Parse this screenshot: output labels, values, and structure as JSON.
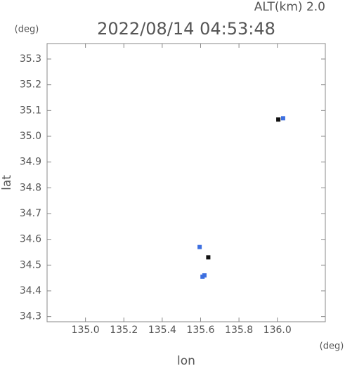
{
  "chart_data": {
    "type": "scatter",
    "title": "2022/08/14 04:53:48",
    "subtitle": "ALT(km) 2.0",
    "x_label": "lon",
    "y_label": "lat",
    "x_unit": "(deg)",
    "y_unit": "(deg)",
    "xlim": [
      134.8,
      136.25
    ],
    "ylim": [
      34.28,
      35.36
    ],
    "xticks": [
      {
        "value": 135.0,
        "label": "135.0"
      },
      135.2,
      135.4,
      135.6,
      135.8,
      {
        "value": 136.0,
        "label": "136.0"
      }
    ],
    "yticks": [
      34.3,
      34.4,
      34.5,
      34.6,
      34.7,
      34.8,
      34.9,
      {
        "value": 35.0,
        "label": "35.0"
      },
      35.1,
      35.2,
      35.3
    ],
    "series": [
      {
        "color": "#3d6fe0",
        "x": [
          136.03,
          135.61,
          135.62,
          135.595
        ],
        "y": [
          35.07,
          34.455,
          34.46,
          34.57
        ]
      },
      {
        "color": "#111111",
        "x": [
          135.64,
          136.005
        ],
        "y": [
          34.53,
          35.065
        ]
      }
    ]
  }
}
